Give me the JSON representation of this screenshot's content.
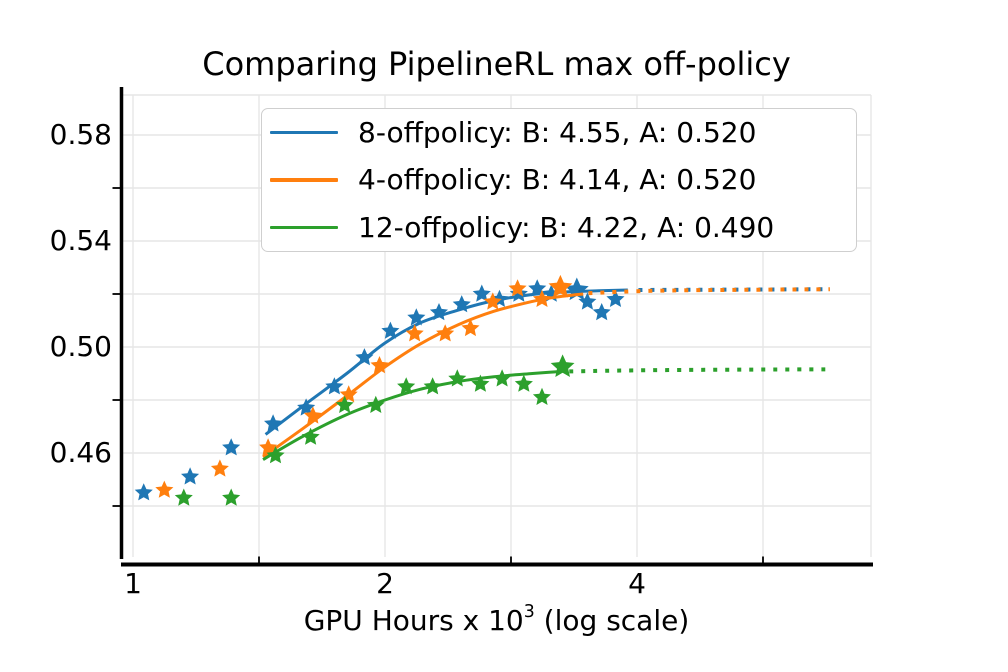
{
  "chart_data": {
    "type": "scatter",
    "title": "Comparing PipelineRL max off-policy",
    "xlabel": {
      "pre": "GPU Hours x 10",
      "sup": "3",
      "post": " (log scale)"
    },
    "xscale": "log2",
    "xlim": [
      0.97,
      7.6
    ],
    "ylim": [
      0.421,
      0.595
    ],
    "grid": true,
    "legend_position": "upper center",
    "xticks": [
      {
        "v": 1,
        "label": "1"
      },
      {
        "v": 2,
        "label": "2"
      },
      {
        "v": 4,
        "label": "4"
      }
    ],
    "xminor_ticks": [
      1.4142,
      2.8284,
      5.6569
    ],
    "yticks": [
      {
        "v": 0.58,
        "label": "0.58"
      },
      {
        "v": 0.54,
        "label": "0.54"
      },
      {
        "v": 0.5,
        "label": "0.50"
      },
      {
        "v": 0.46,
        "label": "0.46"
      }
    ],
    "yminor_ticks": [
      0.56,
      0.52,
      0.48,
      0.44
    ],
    "xgrid": [
      1,
      1.4142,
      2,
      2.8284,
      4,
      5.6569
    ],
    "ygrid": [
      0.44,
      0.46,
      0.48,
      0.5,
      0.52,
      0.54,
      0.56,
      0.58
    ],
    "series": [
      {
        "name": "8-offpolicy",
        "label": "8-offpolicy: B: 4.55, A: 0.520",
        "B": 4.55,
        "A": 0.52,
        "color": "#1f77b4",
        "points": [
          [
            1.03,
            0.445
          ],
          [
            1.17,
            0.451
          ],
          [
            1.31,
            0.462
          ],
          [
            1.47,
            0.471
          ],
          [
            1.61,
            0.477
          ],
          [
            1.74,
            0.485
          ],
          [
            1.89,
            0.496
          ],
          [
            2.03,
            0.506
          ],
          [
            2.18,
            0.511
          ],
          [
            2.32,
            0.513
          ],
          [
            2.47,
            0.516
          ],
          [
            2.61,
            0.52
          ],
          [
            2.74,
            0.518
          ],
          [
            2.89,
            0.52
          ],
          [
            3.04,
            0.522
          ],
          [
            3.16,
            0.52
          ],
          [
            3.49,
            0.517
          ],
          [
            3.63,
            0.513
          ],
          [
            3.77,
            0.518
          ]
        ],
        "end_star": [
          3.39,
          0.5215
        ],
        "curve_solid": [
          [
            1.44,
            0.467
          ],
          [
            1.6,
            0.478
          ],
          [
            1.8,
            0.49
          ],
          [
            2.0,
            0.5015
          ],
          [
            2.2,
            0.509
          ],
          [
            2.45,
            0.514
          ],
          [
            2.7,
            0.5175
          ],
          [
            3.0,
            0.5198
          ],
          [
            3.3,
            0.5208
          ],
          [
            3.6,
            0.5212
          ],
          [
            3.9,
            0.5215
          ]
        ],
        "curve_dotted": [
          [
            3.95,
            0.5215
          ],
          [
            6.8,
            0.5218
          ]
        ],
        "dash_offset": 6
      },
      {
        "name": "4-offpolicy",
        "label": "4-offpolicy: B: 4.14, A: 0.520",
        "B": 4.14,
        "A": 0.52,
        "color": "#ff7f0e",
        "points": [
          [
            1.09,
            0.446
          ],
          [
            1.27,
            0.454
          ],
          [
            1.45,
            0.462
          ],
          [
            1.64,
            0.474
          ],
          [
            1.81,
            0.482
          ],
          [
            1.97,
            0.493
          ],
          [
            2.17,
            0.505
          ],
          [
            2.36,
            0.505
          ],
          [
            2.53,
            0.507
          ],
          [
            2.69,
            0.517
          ],
          [
            2.88,
            0.522
          ],
          [
            3.08,
            0.518
          ]
        ],
        "end_star": [
          3.24,
          0.5225
        ],
        "curve_solid": [
          [
            1.43,
            0.4585
          ],
          [
            1.6,
            0.4695
          ],
          [
            1.8,
            0.4815
          ],
          [
            2.0,
            0.4925
          ],
          [
            2.2,
            0.501
          ],
          [
            2.45,
            0.5085
          ],
          [
            2.7,
            0.5135
          ],
          [
            3.0,
            0.5172
          ],
          [
            3.2,
            0.5188
          ],
          [
            3.45,
            0.52
          ]
        ],
        "curve_dotted": [
          [
            3.5,
            0.5203
          ],
          [
            4.3,
            0.5213
          ],
          [
            6.8,
            0.5218
          ]
        ],
        "dash_offset": 0
      },
      {
        "name": "12-offpolicy",
        "label": "12-offpolicy: B: 4.22, A: 0.490",
        "B": 4.22,
        "A": 0.49,
        "color": "#2ca02c",
        "points": [
          [
            1.15,
            0.443
          ],
          [
            1.31,
            0.443
          ],
          [
            1.48,
            0.459
          ],
          [
            1.63,
            0.466
          ],
          [
            1.79,
            0.478
          ],
          [
            1.95,
            0.478
          ],
          [
            2.12,
            0.485
          ],
          [
            2.28,
            0.485
          ],
          [
            2.44,
            0.488
          ],
          [
            2.6,
            0.486
          ],
          [
            2.76,
            0.488
          ],
          [
            2.93,
            0.486
          ],
          [
            3.08,
            0.481
          ]
        ],
        "end_star": [
          3.26,
          0.4925
        ],
        "curve_solid": [
          [
            1.43,
            0.4575
          ],
          [
            1.6,
            0.4665
          ],
          [
            1.8,
            0.4745
          ],
          [
            2.0,
            0.48
          ],
          [
            2.2,
            0.484
          ],
          [
            2.45,
            0.487
          ],
          [
            2.7,
            0.4888
          ],
          [
            3.0,
            0.49
          ],
          [
            3.26,
            0.4908
          ]
        ],
        "curve_dotted": [
          [
            3.32,
            0.4908
          ],
          [
            4.3,
            0.4913
          ],
          [
            6.8,
            0.4916
          ]
        ],
        "dash_offset": 0
      }
    ],
    "colors": {
      "blue": "#1f77b4",
      "orange": "#ff7f0e",
      "green": "#2ca02c",
      "grid": "#e6e6e6",
      "spine": "#000000"
    }
  }
}
